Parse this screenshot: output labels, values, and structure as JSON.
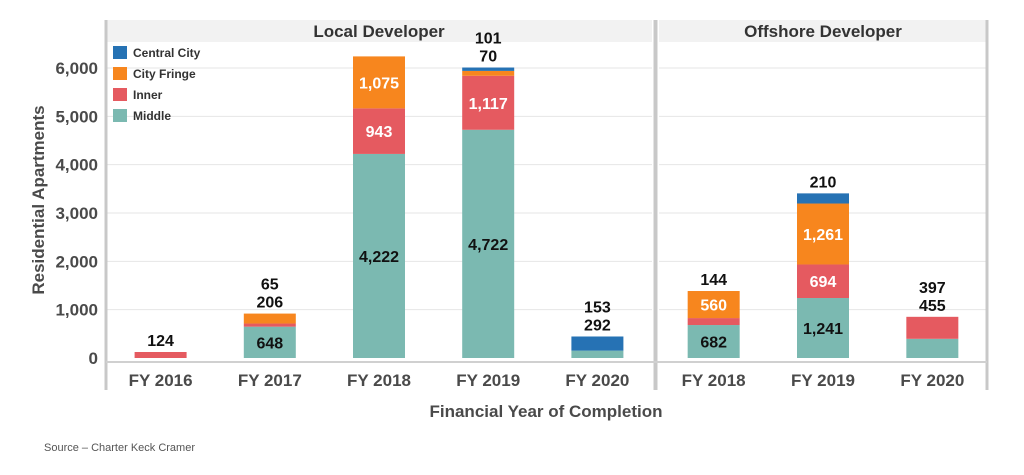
{
  "chart_data": {
    "type": "bar",
    "stacked": true,
    "ylabel": "Residential Apartments",
    "xlabel": "Financial Year of Completion",
    "ylim": [
      0,
      6500
    ],
    "yticks": [
      "0",
      "1,000",
      "2,000",
      "3,000",
      "4,000",
      "5,000",
      "6,000"
    ],
    "ytick_values": [
      0,
      1000,
      2000,
      3000,
      4000,
      5000,
      6000
    ],
    "grid": true,
    "legend_position": "top-left",
    "colors": {
      "Central City": "#2672b4",
      "City Fringe": "#f7861e",
      "Inner": "#e55a60",
      "Middle": "#7bb9b1"
    },
    "series_order": [
      "Middle",
      "Inner",
      "City Fringe",
      "Central City"
    ],
    "legend_order": [
      "Central City",
      "City Fringe",
      "Inner",
      "Middle"
    ],
    "panels": [
      {
        "title": "Local Developer",
        "categories": [
          "FY 2016",
          "FY 2017",
          "FY 2018",
          "FY 2019",
          "FY 2020"
        ],
        "series": [
          {
            "name": "Middle",
            "values": [
              0,
              648,
              4222,
              4722,
              153
            ]
          },
          {
            "name": "Inner",
            "values": [
              124,
              65,
              943,
              1117,
              0
            ]
          },
          {
            "name": "City Fringe",
            "values": [
              0,
              206,
              1075,
              101,
              0
            ]
          },
          {
            "name": "Central City",
            "values": [
              0,
              0,
              0,
              70,
              292
            ]
          }
        ]
      },
      {
        "title": "Offshore Developer",
        "categories": [
          "FY 2018",
          "FY 2019",
          "FY 2020"
        ],
        "series": [
          {
            "name": "Middle",
            "values": [
              682,
              1241,
              397
            ]
          },
          {
            "name": "Inner",
            "values": [
              144,
              694,
              455
            ]
          },
          {
            "name": "City Fringe",
            "values": [
              560,
              1261,
              0
            ]
          },
          {
            "name": "Central City",
            "values": [
              0,
              210,
              0
            ]
          }
        ]
      }
    ]
  },
  "footer": {
    "source": "Source – Charter Keck Cramer"
  }
}
